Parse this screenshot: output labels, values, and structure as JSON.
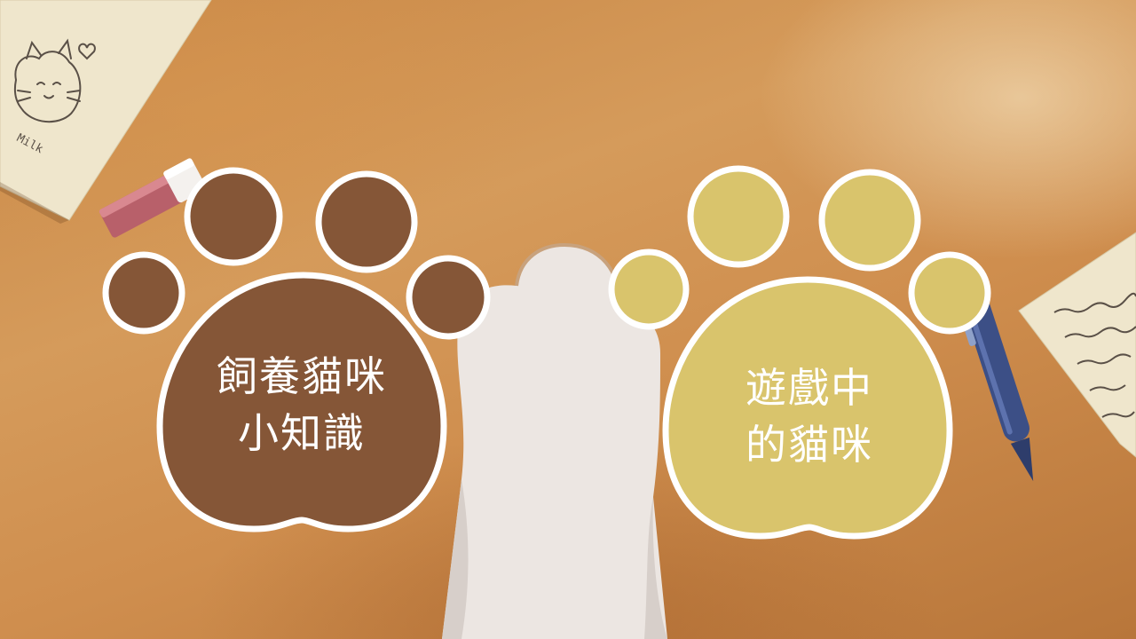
{
  "slide": {
    "menu_items": [
      {
        "lines": [
          "飼養貓咪",
          "小知識"
        ],
        "color": "#855637"
      },
      {
        "lines": [
          "遊戲中",
          "的貓咪"
        ],
        "color": "#d9c46c"
      }
    ],
    "paper_note_text": "Milk"
  },
  "colors": {
    "paw_outline": "#ffffff",
    "cat_arm": "#ece6e2",
    "pen_body": "#3c4f86",
    "eraser": "#b8606a",
    "paper": "#efe6cc"
  }
}
